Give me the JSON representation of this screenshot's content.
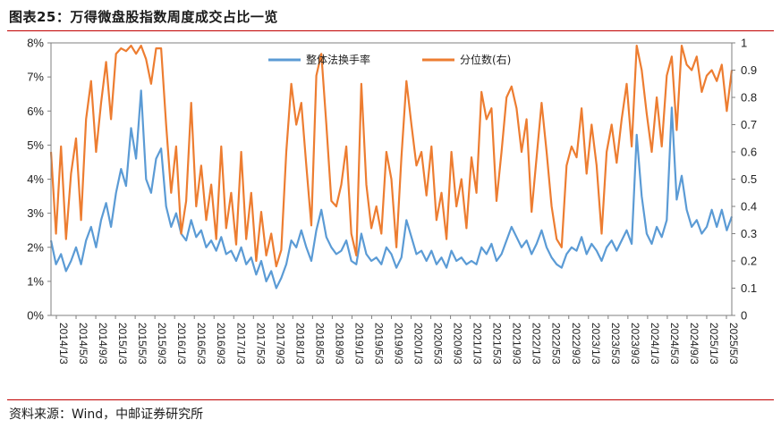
{
  "title": "图表25：万得微盘股指数周度成交占比一览",
  "source": "资料来源：Wind，中邮证券研究所",
  "colors": {
    "turnover": "#5b9bd5",
    "percentile": "#ed7d31",
    "accent": "#c00000"
  },
  "chart_data": {
    "type": "line",
    "x_ticks": [
      "2014/1/3",
      "2014/5/3",
      "2014/9/3",
      "2015/1/3",
      "2015/5/3",
      "2015/9/3",
      "2016/1/3",
      "2016/5/3",
      "2016/9/3",
      "2017/1/3",
      "2017/5/3",
      "2017/9/3",
      "2018/1/3",
      "2018/5/3",
      "2018/9/3",
      "2019/1/3",
      "2019/5/3",
      "2019/9/3",
      "2020/1/3",
      "2020/5/3",
      "2020/9/3",
      "2021/1/3",
      "2021/5/3",
      "2021/9/3",
      "2022/1/3",
      "2022/5/3",
      "2022/9/3",
      "2023/1/3",
      "2023/5/3",
      "2023/9/3",
      "2024/1/3",
      "2024/5/3",
      "2024/9/3",
      "2025/1/3",
      "2025/5/3"
    ],
    "y_left": {
      "ticks": [
        "0%",
        "1%",
        "2%",
        "3%",
        "4%",
        "5%",
        "6%",
        "7%",
        "8%"
      ],
      "ylim": [
        0,
        8
      ]
    },
    "y_right": {
      "ticks": [
        "0",
        "0.1",
        "0.2",
        "0.3",
        "0.4",
        "0.5",
        "0.6",
        "0.7",
        "0.8",
        "0.9",
        "1"
      ],
      "ylim": [
        0,
        1
      ]
    },
    "legend_position": "top-center",
    "series": [
      {
        "name": "整体法换手率",
        "axis": "left",
        "x": [
          0,
          1,
          2,
          3,
          4,
          5,
          6,
          7,
          8,
          9,
          10,
          11,
          12,
          13,
          14,
          15,
          16,
          17,
          18,
          19,
          20,
          21,
          22,
          23,
          24,
          25,
          26,
          27,
          28,
          29,
          30,
          31,
          32,
          33,
          34,
          35,
          36,
          37,
          38,
          39,
          40,
          41,
          42,
          43,
          44,
          45,
          46,
          47,
          48,
          49,
          50,
          51,
          52,
          53,
          54,
          55,
          56,
          57,
          58,
          59,
          60,
          61,
          62,
          63,
          64,
          65,
          66,
          67,
          68,
          69,
          70,
          71,
          72,
          73,
          74,
          75,
          76,
          77,
          78,
          79,
          80,
          81,
          82,
          83,
          84,
          85,
          86,
          87,
          88,
          89,
          90,
          91,
          92,
          93,
          94,
          95,
          96,
          97,
          98,
          99,
          100,
          101,
          102,
          103,
          104,
          105,
          106,
          107,
          108,
          109,
          110,
          111,
          112,
          113,
          114,
          115,
          116,
          117,
          118,
          119,
          120,
          121,
          122,
          123,
          124,
          125,
          126,
          127,
          128,
          129,
          130,
          131,
          132,
          133,
          134,
          135,
          136
        ],
        "values": [
          2.2,
          1.5,
          1.8,
          1.3,
          1.6,
          2.0,
          1.5,
          2.2,
          2.6,
          2.0,
          2.8,
          3.3,
          2.6,
          3.6,
          4.3,
          3.8,
          5.5,
          4.6,
          6.6,
          4.0,
          3.6,
          4.6,
          4.9,
          3.2,
          2.6,
          3.0,
          2.4,
          2.2,
          2.8,
          2.3,
          2.5,
          2.0,
          2.2,
          1.9,
          2.3,
          1.8,
          1.9,
          1.6,
          2.0,
          1.5,
          1.7,
          1.2,
          1.6,
          1.0,
          1.3,
          0.8,
          1.1,
          1.5,
          2.2,
          2.0,
          2.5,
          2.0,
          1.6,
          2.5,
          3.1,
          2.3,
          2.0,
          1.8,
          1.9,
          2.2,
          1.6,
          1.5,
          2.4,
          1.8,
          1.6,
          1.7,
          1.5,
          2.0,
          1.8,
          1.4,
          1.7,
          2.8,
          2.3,
          1.8,
          1.9,
          1.6,
          1.9,
          1.5,
          1.7,
          1.4,
          1.9,
          1.6,
          1.7,
          1.5,
          1.6,
          1.5,
          2.0,
          1.8,
          2.1,
          1.6,
          1.8,
          2.2,
          2.6,
          2.3,
          2.0,
          2.2,
          1.8,
          2.1,
          2.5,
          2.0,
          1.7,
          1.5,
          1.4,
          1.8,
          2.0,
          1.9,
          2.3,
          1.8,
          2.1,
          1.9,
          1.6,
          2.0,
          2.2,
          1.9,
          2.2,
          2.5,
          2.1,
          5.3,
          3.5,
          2.4,
          2.1,
          2.6,
          2.3,
          2.8,
          6.1,
          3.4,
          4.1,
          3.1,
          2.6,
          2.8,
          2.4,
          2.6,
          3.1,
          2.6,
          3.1,
          2.5,
          2.9
        ]
      },
      {
        "name": "分位数(右)",
        "axis": "right",
        "x": [
          0,
          1,
          2,
          3,
          4,
          5,
          6,
          7,
          8,
          9,
          10,
          11,
          12,
          13,
          14,
          15,
          16,
          17,
          18,
          19,
          20,
          21,
          22,
          23,
          24,
          25,
          26,
          27,
          28,
          29,
          30,
          31,
          32,
          33,
          34,
          35,
          36,
          37,
          38,
          39,
          40,
          41,
          42,
          43,
          44,
          45,
          46,
          47,
          48,
          49,
          50,
          51,
          52,
          53,
          54,
          55,
          56,
          57,
          58,
          59,
          60,
          61,
          62,
          63,
          64,
          65,
          66,
          67,
          68,
          69,
          70,
          71,
          72,
          73,
          74,
          75,
          76,
          77,
          78,
          79,
          80,
          81,
          82,
          83,
          84,
          85,
          86,
          87,
          88,
          89,
          90,
          91,
          92,
          93,
          94,
          95,
          96,
          97,
          98,
          99,
          100,
          101,
          102,
          103,
          104,
          105,
          106,
          107,
          108,
          109,
          110,
          111,
          112,
          113,
          114,
          115,
          116,
          117,
          118,
          119,
          120,
          121,
          122,
          123,
          124,
          125,
          126,
          127,
          128,
          129,
          130,
          131,
          132,
          133,
          134,
          135,
          136
        ],
        "values": [
          0.6,
          0.3,
          0.62,
          0.28,
          0.52,
          0.65,
          0.35,
          0.72,
          0.86,
          0.6,
          0.78,
          0.93,
          0.72,
          0.96,
          0.98,
          0.97,
          0.99,
          0.96,
          0.99,
          0.94,
          0.85,
          0.98,
          0.98,
          0.7,
          0.45,
          0.62,
          0.3,
          0.42,
          0.78,
          0.4,
          0.55,
          0.35,
          0.48,
          0.28,
          0.62,
          0.32,
          0.45,
          0.26,
          0.6,
          0.28,
          0.45,
          0.2,
          0.38,
          0.22,
          0.3,
          0.18,
          0.24,
          0.6,
          0.85,
          0.7,
          0.78,
          0.55,
          0.33,
          0.88,
          0.96,
          0.7,
          0.42,
          0.4,
          0.48,
          0.62,
          0.3,
          0.22,
          0.85,
          0.48,
          0.32,
          0.4,
          0.3,
          0.6,
          0.5,
          0.25,
          0.58,
          0.86,
          0.7,
          0.55,
          0.6,
          0.44,
          0.62,
          0.35,
          0.45,
          0.28,
          0.6,
          0.4,
          0.5,
          0.32,
          0.58,
          0.45,
          0.82,
          0.72,
          0.76,
          0.42,
          0.6,
          0.8,
          0.84,
          0.76,
          0.6,
          0.72,
          0.38,
          0.58,
          0.78,
          0.6,
          0.4,
          0.28,
          0.25,
          0.55,
          0.62,
          0.58,
          0.76,
          0.52,
          0.7,
          0.55,
          0.3,
          0.6,
          0.7,
          0.56,
          0.72,
          0.85,
          0.62,
          0.99,
          0.9,
          0.74,
          0.6,
          0.8,
          0.62,
          0.88,
          0.95,
          0.68,
          0.99,
          0.92,
          0.9,
          0.95,
          0.82,
          0.88,
          0.9,
          0.86,
          0.92,
          0.75,
          0.9
        ]
      }
    ]
  }
}
